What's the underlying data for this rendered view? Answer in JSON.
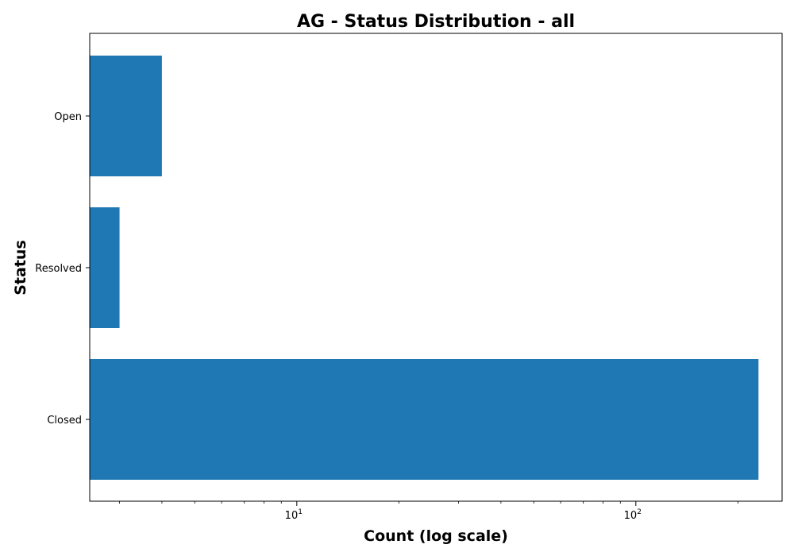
{
  "chart_data": {
    "type": "bar",
    "orientation": "horizontal",
    "title": "AG - Status Distribution - all",
    "xlabel": "Count (log scale)",
    "ylabel": "Status",
    "x_scale": "log",
    "xlim": [
      2.45,
      270
    ],
    "x_ticks": [
      {
        "base": "10",
        "exponent": "1",
        "value": 10
      },
      {
        "base": "10",
        "exponent": "2",
        "value": 100
      }
    ],
    "categories": [
      "Open",
      "Resolved",
      "Closed"
    ],
    "values": [
      4,
      3,
      230
    ],
    "bar_color": "#1f77b4",
    "grid": false,
    "legend": "none"
  }
}
